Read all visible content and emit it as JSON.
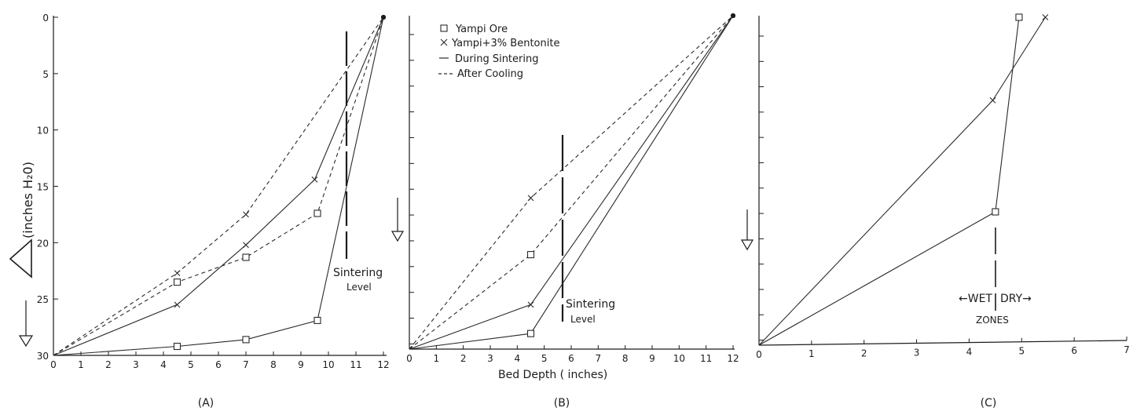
{
  "figure": {
    "caption_a": "(A)",
    "caption_b": "(B)",
    "caption_c": "(C)",
    "x_axis_title": "Bed   Depth ( inches)",
    "y_axis_title": "(inches H₂0)",
    "legend": {
      "square": "Yampi  Ore",
      "cross": "Yampi+3% Bentonite",
      "solid": "During  Sintering",
      "dashed": "After  Cooling"
    },
    "sintering_label_a_line1": "Sintering",
    "sintering_label_a_line2": "Level",
    "sintering_label_b_line1": "Sintering",
    "sintering_label_b_line2": "Level",
    "wet_label": "←WET",
    "dry_label": "DRY→",
    "zones_label": "ZONES",
    "colors": {
      "ink": "#1c1c1c",
      "line": "#2a2a2a",
      "background": "#ffffff"
    }
  },
  "chart_data": [
    {
      "id": "A",
      "type": "line",
      "xlabel": "",
      "ylabel": "(inches H₂0)",
      "xlim": [
        0,
        12
      ],
      "ylim": [
        30,
        0
      ],
      "x_ticks": [
        0,
        1,
        2,
        3,
        4,
        5,
        6,
        7,
        8,
        9,
        10,
        11,
        12
      ],
      "y_ticks": [
        0,
        5,
        10,
        15,
        20,
        25,
        30
      ],
      "sintering_level_x": 10.6,
      "series": [
        {
          "marker": "square",
          "style": "solid",
          "points": [
            [
              0,
              30
            ],
            [
              4.5,
              29.2
            ],
            [
              7,
              28.6
            ],
            [
              9.6,
              26.9
            ],
            [
              12,
              0
            ]
          ]
        },
        {
          "marker": "square",
          "style": "dashed",
          "points": [
            [
              0,
              30
            ],
            [
              4.5,
              23.5
            ],
            [
              7,
              21.3
            ],
            [
              9.6,
              17.4
            ],
            [
              12,
              0
            ]
          ]
        },
        {
          "marker": "cross",
          "style": "solid",
          "points": [
            [
              0,
              30
            ],
            [
              4.5,
              25.5
            ],
            [
              7,
              20.2
            ],
            [
              9.5,
              14.4
            ],
            [
              12,
              0
            ]
          ]
        },
        {
          "marker": "cross",
          "style": "dashed",
          "points": [
            [
              0,
              30
            ],
            [
              4.5,
              22.7
            ],
            [
              7,
              17.5
            ],
            [
              12,
              0
            ]
          ]
        }
      ]
    },
    {
      "id": "B",
      "type": "line",
      "xlabel": "Bed   Depth ( inches)",
      "ylabel": "",
      "xlim": [
        0,
        12
      ],
      "ylim": [
        30,
        0
      ],
      "x_ticks": [
        0,
        1,
        2,
        3,
        4,
        5,
        6,
        7,
        8,
        9,
        10,
        11,
        12
      ],
      "y_ticks": [],
      "sintering_level_x": 5.6,
      "series": [
        {
          "marker": "square",
          "style": "solid",
          "points": [
            [
              0,
              30
            ],
            [
              4.5,
              28.6
            ],
            [
              12,
              0
            ]
          ]
        },
        {
          "marker": "square",
          "style": "dashed",
          "points": [
            [
              0,
              30
            ],
            [
              4.5,
              21.5
            ],
            [
              12,
              0
            ]
          ]
        },
        {
          "marker": "cross",
          "style": "solid",
          "points": [
            [
              0,
              30
            ],
            [
              4.5,
              26.0
            ],
            [
              12,
              0
            ]
          ]
        },
        {
          "marker": "cross",
          "style": "dashed",
          "points": [
            [
              0,
              30
            ],
            [
              4.5,
              16.4
            ],
            [
              12,
              0
            ]
          ]
        }
      ]
    },
    {
      "id": "C",
      "type": "line",
      "xlabel": "",
      "ylabel": "",
      "xlim": [
        0,
        7
      ],
      "ylim": [
        30,
        0
      ],
      "x_ticks": [
        0,
        1,
        2,
        3,
        4,
        5,
        6,
        7
      ],
      "y_ticks": [],
      "wet_dry_boundary_x": 4.5,
      "series": [
        {
          "marker": "square",
          "style": "solid",
          "points": [
            [
              0,
              30
            ],
            [
              4.5,
              17.8
            ],
            [
              4.95,
              0
            ]
          ]
        },
        {
          "marker": "cross",
          "style": "solid",
          "points": [
            [
              0,
              30
            ],
            [
              4.45,
              7.6
            ],
            [
              5.45,
              0
            ]
          ]
        }
      ]
    }
  ]
}
